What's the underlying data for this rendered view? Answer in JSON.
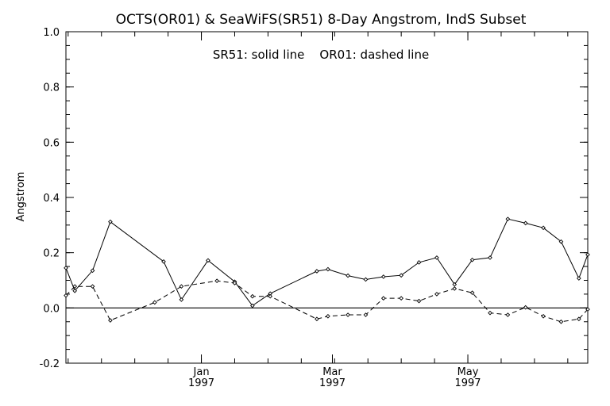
{
  "chart_data": {
    "type": "line",
    "title": "OCTS(OR01) & SeaWiFS(SR51) 8-Day Angstrom, IndS Subset",
    "annotation": "SR51: solid line    OR01: dashed line",
    "ylabel": "Angstrom",
    "xlabel": "",
    "ylim": [
      -0.2,
      1.0
    ],
    "yticks": [
      "-0.2",
      "0.0",
      "0.2",
      "0.4",
      "0.6",
      "0.8",
      "1.0"
    ],
    "xlim": [
      "1996-11-01",
      "1997-06-24"
    ],
    "xticks": [
      {
        "date": "1997-01-01",
        "label": "Jan",
        "year": "1997"
      },
      {
        "date": "1997-03-01",
        "label": "Mar",
        "year": "1997"
      },
      {
        "date": "1997-05-01",
        "label": "May",
        "year": "1997"
      }
    ],
    "zero_line": 0.0,
    "grid": false,
    "series": [
      {
        "name": "SR51",
        "style": "solid",
        "points": [
          {
            "x": "1996-11-01",
            "y": 0.145
          },
          {
            "x": "1996-11-05",
            "y": 0.062
          },
          {
            "x": "1996-11-13",
            "y": 0.135
          },
          {
            "x": "1996-11-21",
            "y": 0.312
          },
          {
            "x": "1996-12-15",
            "y": 0.168
          },
          {
            "x": "1996-12-23",
            "y": 0.03
          },
          {
            "x": "1997-01-04",
            "y": 0.172
          },
          {
            "x": "1997-01-16",
            "y": 0.095
          },
          {
            "x": "1997-01-24",
            "y": 0.008
          },
          {
            "x": "1997-02-01",
            "y": 0.052
          },
          {
            "x": "1997-02-22",
            "y": 0.133
          },
          {
            "x": "1997-02-27",
            "y": 0.14
          },
          {
            "x": "1997-03-08",
            "y": 0.117
          },
          {
            "x": "1997-03-16",
            "y": 0.103
          },
          {
            "x": "1997-03-24",
            "y": 0.113
          },
          {
            "x": "1997-04-01",
            "y": 0.118
          },
          {
            "x": "1997-04-09",
            "y": 0.165
          },
          {
            "x": "1997-04-17",
            "y": 0.182
          },
          {
            "x": "1997-04-25",
            "y": 0.085
          },
          {
            "x": "1997-05-03",
            "y": 0.174
          },
          {
            "x": "1997-05-11",
            "y": 0.182
          },
          {
            "x": "1997-05-19",
            "y": 0.322
          },
          {
            "x": "1997-05-27",
            "y": 0.307
          },
          {
            "x": "1997-06-04",
            "y": 0.29
          },
          {
            "x": "1997-06-12",
            "y": 0.24
          },
          {
            "x": "1997-06-20",
            "y": 0.107
          },
          {
            "x": "1997-06-24",
            "y": 0.193
          }
        ]
      },
      {
        "name": "OR01",
        "style": "dashed",
        "points": [
          {
            "x": "1996-11-01",
            "y": 0.045
          },
          {
            "x": "1996-11-05",
            "y": 0.078
          },
          {
            "x": "1996-11-13",
            "y": 0.078
          },
          {
            "x": "1996-11-21",
            "y": -0.045
          },
          {
            "x": "1996-12-11",
            "y": 0.02
          },
          {
            "x": "1996-12-23",
            "y": 0.078
          },
          {
            "x": "1997-01-08",
            "y": 0.098
          },
          {
            "x": "1997-01-16",
            "y": 0.09
          },
          {
            "x": "1997-01-24",
            "y": 0.042
          },
          {
            "x": "1997-02-01",
            "y": 0.042
          },
          {
            "x": "1997-02-22",
            "y": -0.04
          },
          {
            "x": "1997-02-27",
            "y": -0.03
          },
          {
            "x": "1997-03-08",
            "y": -0.025
          },
          {
            "x": "1997-03-16",
            "y": -0.025
          },
          {
            "x": "1997-03-24",
            "y": 0.035
          },
          {
            "x": "1997-04-01",
            "y": 0.035
          },
          {
            "x": "1997-04-09",
            "y": 0.025
          },
          {
            "x": "1997-04-17",
            "y": 0.05
          },
          {
            "x": "1997-04-25",
            "y": 0.07
          },
          {
            "x": "1997-05-03",
            "y": 0.055
          },
          {
            "x": "1997-05-11",
            "y": -0.018
          },
          {
            "x": "1997-05-19",
            "y": -0.025
          },
          {
            "x": "1997-05-27",
            "y": 0.002
          },
          {
            "x": "1997-06-04",
            "y": -0.03
          },
          {
            "x": "1997-06-12",
            "y": -0.05
          },
          {
            "x": "1997-06-20",
            "y": -0.04
          },
          {
            "x": "1997-06-24",
            "y": -0.005
          }
        ]
      }
    ]
  }
}
